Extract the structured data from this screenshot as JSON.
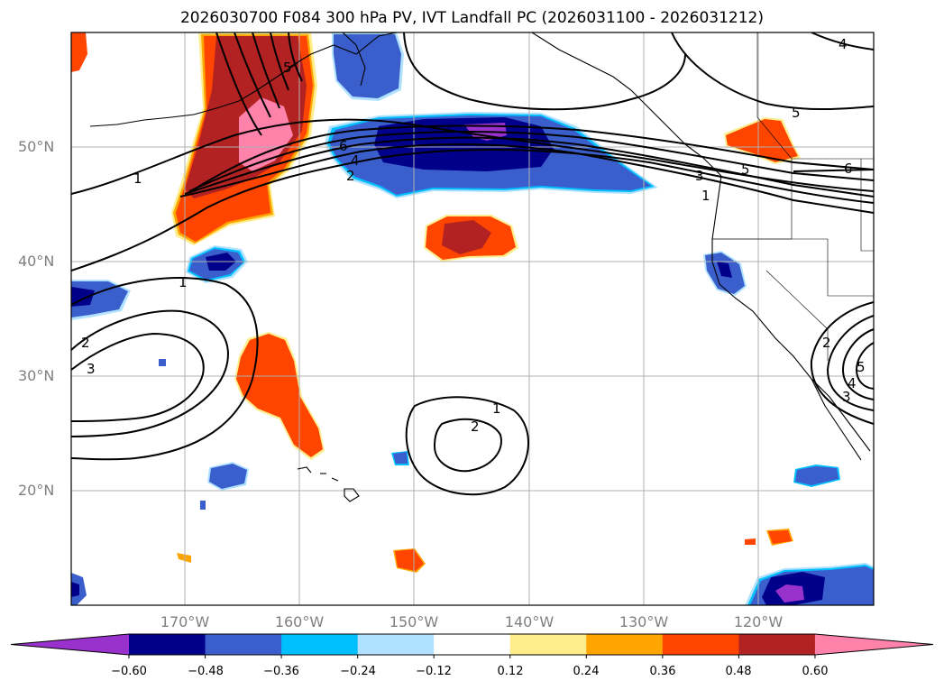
{
  "title": "2026030700 F084 300 hPa PV, IVT Landfall PC (2026031100 - 2026031212)",
  "lat_labels": [
    "50°N",
    "40°N",
    "30°N",
    "20°N"
  ],
  "lon_labels": [
    "170°W",
    "160°W",
    "150°W",
    "140°W",
    "130°W",
    "120°W"
  ],
  "colorbar": {
    "ticks": [
      "−0.60",
      "−0.48",
      "−0.36",
      "−0.24",
      "−0.12",
      "0.12",
      "0.24",
      "0.36",
      "0.48",
      "0.60"
    ],
    "colors": [
      "#9932cc",
      "#00008b",
      "#3a5fcd",
      "#00bfff",
      "#b0e2ff",
      "#ffffff",
      "#ffec8b",
      "#ffa500",
      "#ff4500",
      "#b22222",
      "#ff82ab"
    ]
  },
  "contour_labels": [
    "1",
    "1",
    "2",
    "3",
    "1",
    "2",
    "6",
    "4",
    "2",
    "3",
    "1",
    "5",
    "6",
    "4",
    "5",
    "5",
    "2",
    "3",
    "4",
    "5"
  ],
  "colors": {
    "grid": "#b0b0b0",
    "contour": "#000000",
    "coast": "#000000"
  }
}
